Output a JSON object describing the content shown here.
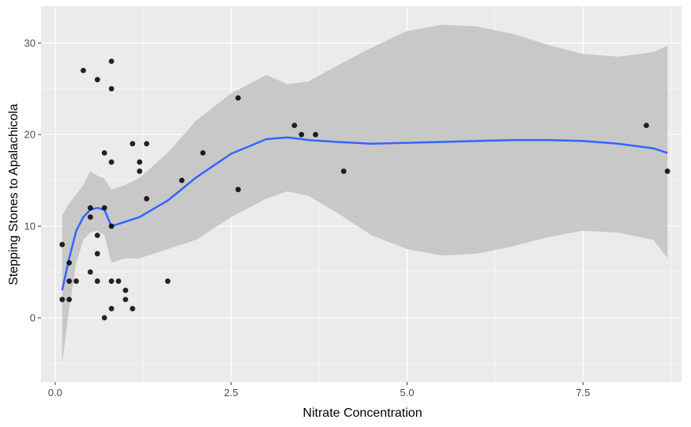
{
  "chart_data": {
    "type": "scatter",
    "title": "",
    "xlabel": "Nitrate Concentration",
    "ylabel": "Stepping Stones to Apalachicola",
    "xlim": [
      -0.2,
      8.9
    ],
    "ylim": [
      -7,
      34
    ],
    "x_ticks": [
      0.0,
      2.5,
      5.0,
      7.5
    ],
    "x_tick_labels": [
      "0.0",
      "2.5",
      "5.0",
      "7.5"
    ],
    "y_ticks": [
      0,
      10,
      20,
      30
    ],
    "y_tick_labels": [
      "0",
      "10",
      "20",
      "30"
    ],
    "grid": true,
    "legend": "none",
    "colors": {
      "panel": "#ebebeb",
      "grid": "#ffffff",
      "points": "#000000",
      "smooth_line": "#3366ff",
      "ribbon": "#c4c4c4"
    },
    "points": [
      {
        "x": 0.1,
        "y": 8
      },
      {
        "x": 0.1,
        "y": 2
      },
      {
        "x": 0.2,
        "y": 6
      },
      {
        "x": 0.2,
        "y": 4
      },
      {
        "x": 0.2,
        "y": 2
      },
      {
        "x": 0.3,
        "y": 4
      },
      {
        "x": 0.4,
        "y": 27
      },
      {
        "x": 0.5,
        "y": 12
      },
      {
        "x": 0.5,
        "y": 11
      },
      {
        "x": 0.5,
        "y": 5
      },
      {
        "x": 0.6,
        "y": 26
      },
      {
        "x": 0.6,
        "y": 9
      },
      {
        "x": 0.6,
        "y": 7
      },
      {
        "x": 0.6,
        "y": 4
      },
      {
        "x": 0.7,
        "y": 18
      },
      {
        "x": 0.7,
        "y": 12
      },
      {
        "x": 0.7,
        "y": 0
      },
      {
        "x": 0.8,
        "y": 28
      },
      {
        "x": 0.8,
        "y": 25
      },
      {
        "x": 0.8,
        "y": 17
      },
      {
        "x": 0.8,
        "y": 10
      },
      {
        "x": 0.8,
        "y": 4
      },
      {
        "x": 0.8,
        "y": 1
      },
      {
        "x": 0.9,
        "y": 4
      },
      {
        "x": 1.0,
        "y": 3
      },
      {
        "x": 1.0,
        "y": 2
      },
      {
        "x": 1.1,
        "y": 19
      },
      {
        "x": 1.1,
        "y": 1
      },
      {
        "x": 1.2,
        "y": 17
      },
      {
        "x": 1.2,
        "y": 16
      },
      {
        "x": 1.3,
        "y": 19
      },
      {
        "x": 1.3,
        "y": 13
      },
      {
        "x": 1.6,
        "y": 4
      },
      {
        "x": 1.8,
        "y": 15
      },
      {
        "x": 2.1,
        "y": 18
      },
      {
        "x": 2.6,
        "y": 24
      },
      {
        "x": 2.6,
        "y": 14
      },
      {
        "x": 3.4,
        "y": 21
      },
      {
        "x": 3.5,
        "y": 20
      },
      {
        "x": 3.7,
        "y": 20
      },
      {
        "x": 4.1,
        "y": 16
      },
      {
        "x": 8.4,
        "y": 21
      },
      {
        "x": 8.7,
        "y": 16
      }
    ],
    "smooth": {
      "x": [
        0.1,
        0.2,
        0.3,
        0.4,
        0.5,
        0.6,
        0.7,
        0.8,
        1.0,
        1.2,
        1.6,
        2.0,
        2.5,
        3.0,
        3.3,
        3.6,
        4.0,
        4.5,
        5.0,
        5.5,
        6.0,
        6.5,
        7.0,
        7.5,
        8.0,
        8.5,
        8.7
      ],
      "y": [
        3.0,
        6.5,
        9.5,
        11.0,
        11.8,
        12.0,
        11.8,
        10.0,
        10.5,
        11.0,
        12.8,
        15.3,
        17.9,
        19.5,
        19.7,
        19.4,
        19.2,
        19.0,
        19.1,
        19.2,
        19.3,
        19.4,
        19.4,
        19.3,
        19.0,
        18.5,
        18.0
      ],
      "lower": [
        -5.0,
        1.0,
        6.0,
        8.5,
        9.3,
        9.5,
        9.0,
        6.0,
        6.5,
        6.5,
        7.5,
        8.5,
        11.0,
        13.0,
        13.8,
        13.3,
        11.5,
        9.0,
        7.5,
        6.8,
        7.0,
        7.8,
        8.8,
        9.5,
        9.3,
        8.5,
        6.5
      ],
      "upper": [
        11.2,
        12.5,
        13.5,
        14.5,
        16.0,
        15.5,
        15.2,
        14.0,
        14.5,
        15.3,
        18.0,
        21.5,
        24.5,
        26.5,
        25.5,
        25.8,
        27.5,
        29.5,
        31.3,
        32.0,
        31.8,
        31.0,
        29.8,
        28.8,
        28.5,
        29.0,
        29.7
      ]
    }
  }
}
